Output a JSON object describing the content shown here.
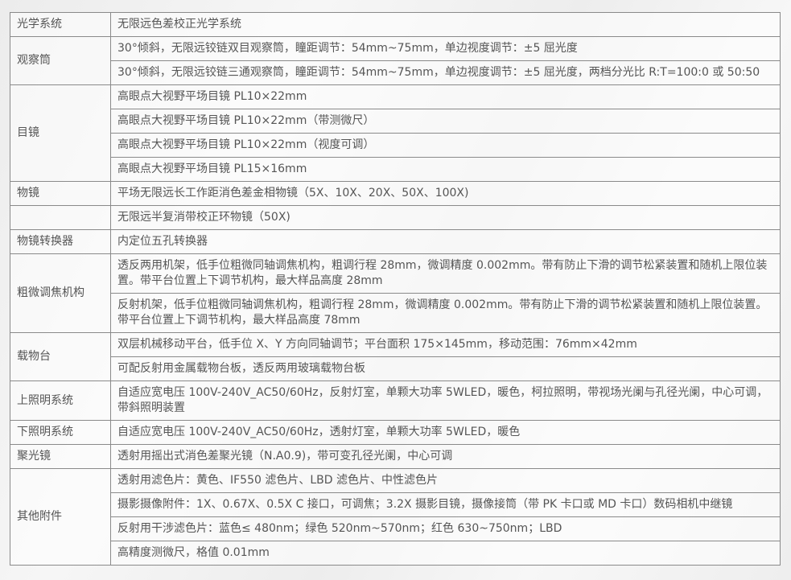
{
  "spec_table": [
    {
      "label": "光学系统",
      "items": [
        "无限远色差校正光学系统"
      ]
    },
    {
      "label": "观察筒",
      "items": [
        "30°倾斜，无限远铰链双目观察筒，瞳距调节：54mm~75mm，单边视度调节：±5 屈光度",
        "30°倾斜，无限远铰链三通观察筒，瞳距调节：54mm~75mm，单边视度调节：±5 屈光度，两档分光比 R:T=100:0 或 50:50"
      ]
    },
    {
      "label": "目镜",
      "items": [
        "高眼点大视野平场目镜 PL10×22mm",
        "高眼点大视野平场目镜 PL10×22mm（带测微尺）",
        "高眼点大视野平场目镜 PL10×22mm（视度可调）",
        "高眼点大视野平场目镜 PL15×16mm"
      ]
    },
    {
      "label": "物镜",
      "items": [
        "平场无限远长工作距消色差金相物镜（5X、10X、20X、50X、100X)"
      ]
    },
    {
      "label": "",
      "items": [
        "无限远半复消带校正环物镜（50X)"
      ]
    },
    {
      "label": "物镜转换器",
      "items": [
        "内定位五孔转换器"
      ]
    },
    {
      "label": "粗微调焦机构",
      "items": [
        "透反两用机架，低手位粗微同轴调焦机构，粗调行程 28mm，微调精度 0.002mm。带有防止下滑的调节松紧装置和随机上限位装置。带平台位置上下调节机构，最大样品高度 28mm",
        "反射机架，低手位粗微同轴调焦机构，粗调行程 28mm，微调精度 0.002mm。带有防止下滑的调节松紧装置和随机上限位装置。带平台位置上下调节机构，最大样品高度 78mm"
      ]
    },
    {
      "label": "载物台",
      "items": [
        "双层机械移动平台，低手位 X、Y 方向同轴调节；平台面积 175×145mm，移动范围：76mm×42mm",
        "可配反射用金属载物台板，透反两用玻璃载物台板"
      ]
    },
    {
      "label": "上照明系统",
      "items": [
        "自适应宽电压 100V-240V_AC50/60Hz，反射灯室，单颗大功率 5WLED，暖色，柯拉照明，带视场光阑与孔径光阑，中心可调，带斜照明装置"
      ]
    },
    {
      "label": "下照明系统",
      "items": [
        "自适应宽电压 100V-240V_AC50/60Hz，透射灯室，单颗大功率 5WLED，暖色"
      ]
    },
    {
      "label": "聚光镜",
      "items": [
        "透射用摇出式消色差聚光镜（N.A0.9)，带可变孔径光阑，中心可调"
      ]
    },
    {
      "label": "其他附件",
      "items": [
        "透射用滤色片：黄色、IF550 滤色片、LBD 滤色片、中性滤色片",
        "摄影摄像附件：1X、0.67X、0.5X C 接口，可调焦；3.2X 摄影目镜，摄像接筒（带 PK 卡口或 MD 卡口）数码相机中继镜",
        "反射用干涉滤色片：蓝色≤ 480nm；绿色 520nm~570nm；红色 630~750nm；LBD",
        "高精度测微尺，格值 0.01mm"
      ]
    }
  ]
}
